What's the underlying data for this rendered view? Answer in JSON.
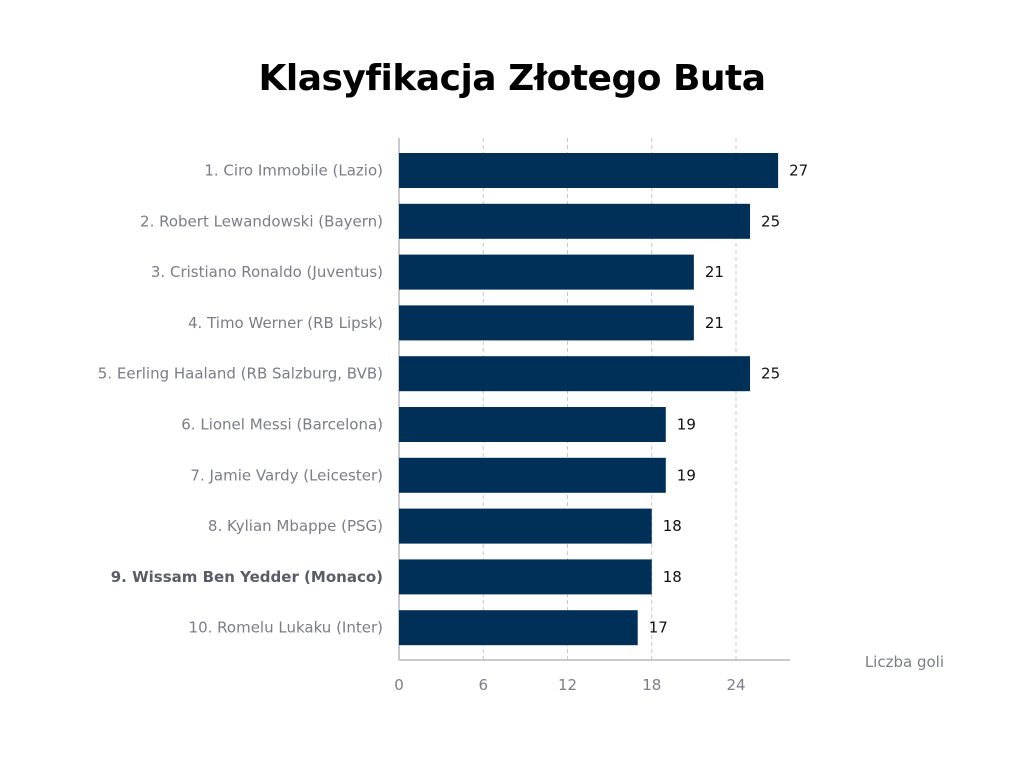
{
  "chart_data": {
    "type": "bar",
    "orientation": "horizontal",
    "title": "Klasyfikacja Złotego Buta",
    "xlabel": "Liczba goli",
    "ylabel": "",
    "categories": [
      "1. Ciro Immobile (Lazio)",
      "2. Robert Lewandowski (Bayern)",
      "3. Cristiano Ronaldo (Juventus)",
      "4. Timo Werner (RB Lipsk)",
      "5. Eerling Haaland (RB Salzburg, BVB)",
      "6. Lionel Messi (Barcelona)",
      "7. Jamie Vardy (Leicester)",
      "8. Kylian Mbappe (PSG)",
      "9. Wissam Ben Yedder (Monaco)",
      "10. Romelu Lukaku (Inter)"
    ],
    "values": [
      27,
      25,
      21,
      21,
      25,
      19,
      19,
      18,
      18,
      17
    ],
    "highlighted_category": "9. Wissam Ben Yedder (Monaco)",
    "xticks": [
      0,
      6,
      12,
      18,
      24
    ],
    "xlim": [
      0,
      28
    ],
    "grid": true,
    "bar_color": "#003057"
  }
}
